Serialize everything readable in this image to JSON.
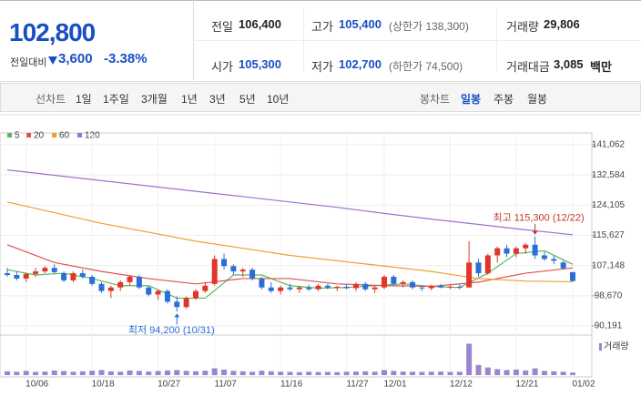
{
  "header": {
    "price": "102,800",
    "change_label": "전일대비",
    "change": "3,600",
    "change_pct": "-3.38%",
    "stats": [
      {
        "label": "전일",
        "value": "106,400"
      },
      {
        "label": "고가",
        "value": "105,400",
        "note": "(상한가 138,300)"
      },
      {
        "label": "거래량",
        "value": "29,806"
      },
      {
        "label": "시가",
        "value": "105,300"
      },
      {
        "label": "저가",
        "value": "102,700",
        "note": "(하한가 74,500)"
      },
      {
        "label": "거래대금",
        "value": "3,085",
        "unit": "백만"
      }
    ]
  },
  "toolbar": {
    "line_label": "선차트",
    "periods": [
      "1일",
      "1주일",
      "3개월",
      "1년",
      "3년",
      "5년",
      "10년"
    ],
    "candle_label": "봉차트",
    "candle_periods": [
      "일봉",
      "주봉",
      "월봉"
    ],
    "selected": "일봉"
  },
  "chart_data": {
    "type": "candlestick",
    "categories": [
      null,
      null,
      "10/06",
      null,
      null,
      null,
      null,
      null,
      null,
      "10/18",
      null,
      null,
      null,
      null,
      null,
      null,
      "10/27",
      null,
      null,
      null,
      null,
      null,
      "11/07",
      null,
      null,
      null,
      null,
      null,
      null,
      "11/16",
      null,
      null,
      null,
      null,
      null,
      null,
      "11/27",
      null,
      null,
      null,
      "12/01",
      null,
      null,
      null,
      null,
      null,
      null,
      "12/12",
      null,
      null,
      null,
      null,
      null,
      null,
      "12/21",
      null,
      null,
      null,
      null,
      null,
      "01/02"
    ],
    "open": [
      105000,
      104500,
      103500,
      104800,
      105500,
      106500,
      105000,
      103000,
      105000,
      104000,
      102000,
      100000,
      101000,
      102500,
      104000,
      101000,
      99000,
      100000,
      97000,
      95500,
      98000,
      100000,
      102000,
      109000,
      107000,
      105500,
      106000,
      103500,
      101000,
      100000,
      101000,
      100500,
      101000,
      100500,
      101500,
      101000,
      101200,
      100800,
      102000,
      100500,
      101000,
      104000,
      102000,
      102500,
      101000,
      100800,
      101500,
      101000,
      101200,
      101000,
      108000,
      105000,
      110000,
      112000,
      110500,
      112000,
      113000,
      110000,
      109000,
      108000,
      105300
    ],
    "high": [
      106500,
      105500,
      105000,
      106500,
      107000,
      107500,
      105500,
      105500,
      106000,
      104500,
      102500,
      101500,
      103000,
      104500,
      104500,
      101500,
      100500,
      100500,
      98500,
      98500,
      100500,
      102500,
      110000,
      110500,
      107500,
      106500,
      106500,
      104000,
      102500,
      101500,
      102000,
      101500,
      101800,
      102000,
      102000,
      101500,
      102000,
      102500,
      102500,
      101500,
      104500,
      104500,
      103000,
      103000,
      101500,
      101800,
      102000,
      101800,
      101800,
      114000,
      109000,
      110500,
      112500,
      113000,
      112500,
      113500,
      115300,
      111000,
      110000,
      108500,
      105400
    ],
    "low": [
      104000,
      103000,
      102500,
      104000,
      105000,
      105000,
      102500,
      102500,
      103500,
      101500,
      99500,
      98000,
      100000,
      101500,
      100500,
      98500,
      97500,
      96500,
      94200,
      95000,
      97500,
      99500,
      101500,
      106000,
      104500,
      104000,
      103000,
      100500,
      99500,
      99000,
      100000,
      99500,
      100000,
      100000,
      100500,
      100000,
      100500,
      100000,
      100000,
      99500,
      100500,
      101500,
      101000,
      100500,
      100000,
      100200,
      100800,
      100500,
      100500,
      101000,
      104000,
      104500,
      108000,
      109500,
      109500,
      110500,
      109000,
      108500,
      107500,
      106000,
      102700
    ],
    "close": [
      104500,
      103500,
      104800,
      105500,
      106500,
      105300,
      103000,
      105000,
      104000,
      102000,
      100000,
      101000,
      102500,
      104000,
      101000,
      99000,
      100000,
      97000,
      95500,
      98000,
      100000,
      101500,
      109000,
      107000,
      105500,
      106000,
      103500,
      101000,
      100000,
      101000,
      100500,
      101000,
      100500,
      101500,
      101000,
      101200,
      100800,
      102000,
      100500,
      101000,
      104000,
      102000,
      102500,
      101000,
      100800,
      101500,
      101000,
      101200,
      101000,
      108000,
      105000,
      110000,
      112000,
      110500,
      112000,
      113000,
      110000,
      109000,
      108500,
      106400,
      102800
    ],
    "volume": [
      45000,
      40000,
      50000,
      38000,
      42000,
      55000,
      48000,
      40000,
      45000,
      52000,
      60000,
      45000,
      40000,
      55000,
      50000,
      42000,
      48000,
      55000,
      60000,
      50000,
      45000,
      52000,
      80000,
      65000,
      50000,
      45000,
      40000,
      52000,
      45000,
      40000,
      38000,
      35000,
      40000,
      36000,
      38000,
      35000,
      40000,
      42000,
      45000,
      40000,
      60000,
      50000,
      42000,
      40000,
      38000,
      40000,
      42000,
      38000,
      40000,
      370000,
      120000,
      90000,
      70000,
      60000,
      65000,
      55000,
      80000,
      50000,
      45000,
      40000,
      29806
    ],
    "volume_label": "거래량",
    "volume_ylim": [
      0,
      450000
    ],
    "up_color": "#e0352b",
    "down_color": "#2b6fd6",
    "volume_color": "#9b85cf",
    "series": [
      {
        "name": "5",
        "color": "#5cb85c",
        "x": [
          0,
          3,
          6,
          9,
          12,
          15,
          18,
          21,
          24,
          27,
          30,
          33,
          36,
          39,
          42,
          45,
          48,
          51,
          54,
          57,
          60
        ],
        "values": [
          106000,
          104500,
          105000,
          103500,
          101500,
          101500,
          98000,
          98000,
          104500,
          104500,
          101500,
          100800,
          101000,
          101500,
          102000,
          101300,
          101000,
          105000,
          110500,
          111300,
          107500
        ]
      },
      {
        "name": "20",
        "color": "#e05050",
        "x": [
          0,
          5,
          10,
          15,
          20,
          25,
          30,
          35,
          40,
          45,
          50,
          55,
          60
        ],
        "values": [
          113000,
          108000,
          105500,
          103500,
          102000,
          103500,
          103500,
          102000,
          101500,
          101300,
          102500,
          105000,
          106500
        ]
      },
      {
        "name": "60",
        "color": "#f0a030",
        "x": [
          0,
          5,
          10,
          15,
          20,
          25,
          30,
          35,
          40,
          45,
          50,
          55,
          60
        ],
        "values": [
          125000,
          122000,
          119000,
          116500,
          114000,
          112000,
          110000,
          108500,
          107000,
          105500,
          103500,
          102800,
          102600
        ]
      },
      {
        "name": "120",
        "color": "#a070d0",
        "x": [
          0,
          5,
          10,
          15,
          20,
          25,
          30,
          35,
          40,
          45,
          50,
          55,
          60
        ],
        "values": [
          134000,
          132500,
          131000,
          129500,
          128000,
          126500,
          125000,
          123500,
          121800,
          120200,
          118700,
          117200,
          115800
        ]
      }
    ],
    "ylim": [
      90191,
      141062
    ],
    "yticks": [
      {
        "value": 90191,
        "label": "90,191"
      },
      {
        "value": 98670,
        "label": "98,670"
      },
      {
        "value": 107148,
        "label": "107,148"
      },
      {
        "value": 115627,
        "label": "115,627"
      },
      {
        "value": 124105,
        "label": "124,105"
      },
      {
        "value": 132584,
        "label": "132,584"
      },
      {
        "value": 141062,
        "label": "141,062"
      }
    ],
    "annotations": [
      {
        "text": "최고 115,300 (12/22)",
        "index": 56,
        "value": 115300,
        "color": "#c0392b"
      },
      {
        "text": "최저 94,200 (10/31)",
        "index": 18,
        "value": 94200,
        "color": "#2b6fd6"
      }
    ]
  }
}
